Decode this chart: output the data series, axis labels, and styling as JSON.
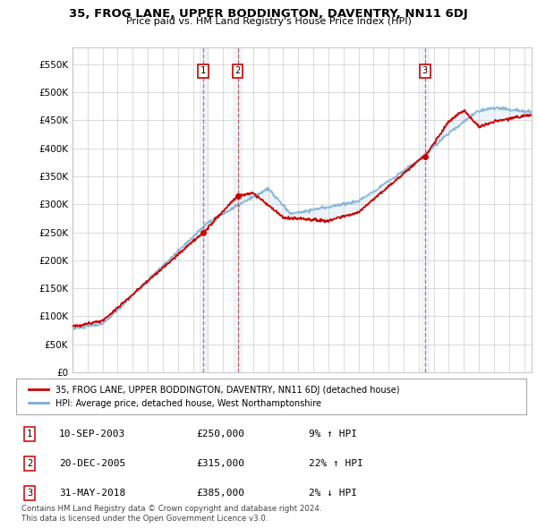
{
  "title": "35, FROG LANE, UPPER BODDINGTON, DAVENTRY, NN11 6DJ",
  "subtitle": "Price paid vs. HM Land Registry's House Price Index (HPI)",
  "xlim_start": 1995.0,
  "xlim_end": 2025.5,
  "ylim": [
    0,
    580000
  ],
  "yticks": [
    0,
    50000,
    100000,
    150000,
    200000,
    250000,
    300000,
    350000,
    400000,
    450000,
    500000,
    550000
  ],
  "ytick_labels": [
    "£0",
    "£50K",
    "£100K",
    "£150K",
    "£200K",
    "£250K",
    "£300K",
    "£350K",
    "£400K",
    "£450K",
    "£500K",
    "£550K"
  ],
  "sale_dates": [
    2003.69,
    2005.97,
    2018.42
  ],
  "sale_prices": [
    250000,
    315000,
    385000
  ],
  "sale_labels": [
    "1",
    "2",
    "3"
  ],
  "legend_line1": "35, FROG LANE, UPPER BODDINGTON, DAVENTRY, NN11 6DJ (detached house)",
  "legend_line2": "HPI: Average price, detached house, West Northamptonshire",
  "table_entries": [
    {
      "num": "1",
      "date": "10-SEP-2003",
      "price": "£250,000",
      "hpi": "9% ↑ HPI"
    },
    {
      "num": "2",
      "date": "20-DEC-2005",
      "price": "£315,000",
      "hpi": "22% ↑ HPI"
    },
    {
      "num": "3",
      "date": "31-MAY-2018",
      "price": "£385,000",
      "hpi": "2% ↓ HPI"
    }
  ],
  "footnote1": "Contains HM Land Registry data © Crown copyright and database right 2024.",
  "footnote2": "This data is licensed under the Open Government Licence v3.0.",
  "red_color": "#cc0000",
  "blue_color": "#7aadd4",
  "background_color": "#ffffff"
}
